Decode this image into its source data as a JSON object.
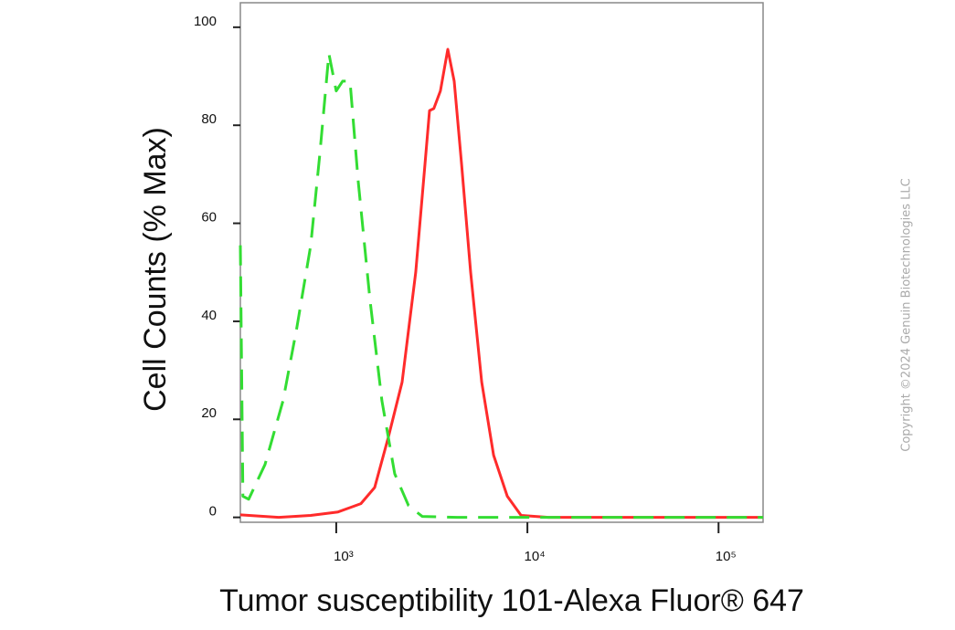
{
  "chart_data": {
    "type": "line",
    "x_label": "Tumor susceptibility 101-Alexa Fluor® 647",
    "y_label": "Cell Counts (% Max)",
    "copyright": "Copyright ©2024 Genuin Biotechnologies LLC",
    "x_scale": "log",
    "xlim": [
      315,
      171000
    ],
    "ylim": [
      -1,
      105
    ],
    "xticks": [
      {
        "value": 1000,
        "label": "10³"
      },
      {
        "value": 10000,
        "label": "10⁴"
      },
      {
        "value": 100000,
        "label": "10⁵"
      }
    ],
    "yticks": [
      0,
      20,
      40,
      60,
      80,
      100
    ],
    "grid": false,
    "series": [
      {
        "color": "#ff2b2b",
        "style": "solid",
        "x": [
          315,
          500,
          735,
          1022,
          1346,
          1589,
          1875,
          2210,
          2605,
          2910,
          3077,
          3240,
          3508,
          3835,
          4140,
          4525,
          5050,
          5765,
          6655,
          7850,
          9270,
          12900,
          171000
        ],
        "values": [
          0.5,
          0,
          0.4,
          1.1,
          2.8,
          6.1,
          16.4,
          27.6,
          50,
          72,
          83,
          83.4,
          87,
          95.5,
          89,
          72,
          50,
          27.6,
          12.7,
          4.3,
          0.4,
          0,
          0
        ]
      },
      {
        "color": "#33dd33",
        "style": "dashed",
        "x": [
          315,
          325,
          348,
          424,
          527,
          622,
          735,
          820,
          915,
          1000,
          1080,
          1180,
          1303,
          1503,
          1734,
          2023,
          2388,
          2818,
          4285,
          171000
        ],
        "values": [
          55.5,
          4.3,
          3.7,
          10.8,
          23.8,
          38.7,
          55.5,
          74,
          94.6,
          87,
          89,
          89,
          68.5,
          44.3,
          23.8,
          8.9,
          2.4,
          0.2,
          0,
          0
        ]
      }
    ]
  }
}
